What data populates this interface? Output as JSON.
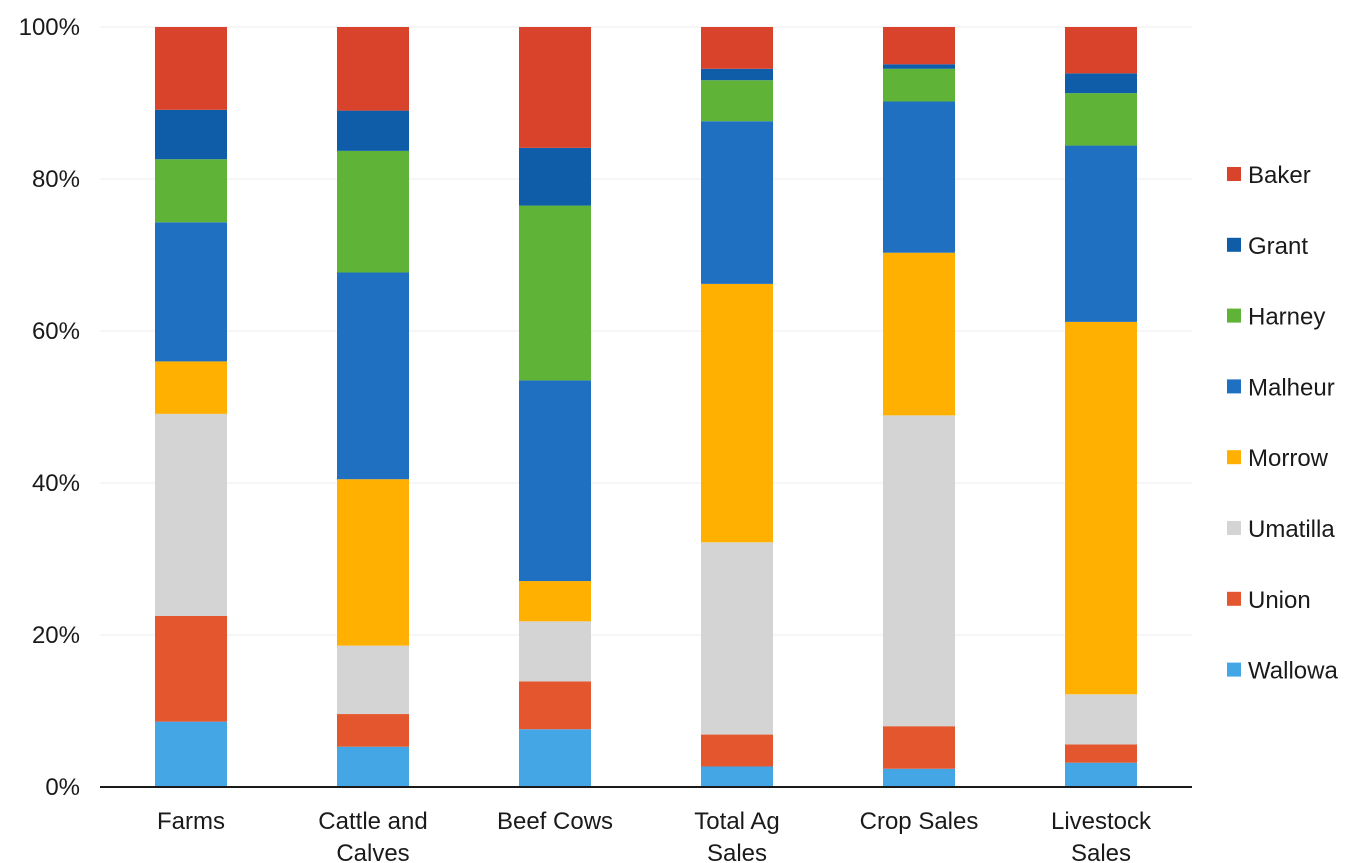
{
  "chart_data": {
    "type": "bar",
    "stacked": true,
    "percent": true,
    "categories": [
      [
        "Farms"
      ],
      [
        "Cattle and",
        "Calves"
      ],
      [
        "Beef Cows"
      ],
      [
        "Total Ag",
        "Sales"
      ],
      [
        "Crop Sales"
      ],
      [
        "Livestock",
        "Sales"
      ]
    ],
    "ylim": [
      0,
      100
    ],
    "yticks": [
      "0%",
      "20%",
      "40%",
      "60%",
      "80%",
      "100%"
    ],
    "ytick_values": [
      0,
      20,
      40,
      60,
      80,
      100
    ],
    "grid": true,
    "legend_position": "right",
    "series": [
      {
        "name": "Wallowa",
        "color": "#45a6e6",
        "values": [
          8.6,
          5.3,
          7.6,
          2.7,
          2.4,
          3.2
        ]
      },
      {
        "name": "Union",
        "color": "#e4572e",
        "values": [
          13.9,
          4.3,
          6.3,
          4.2,
          5.6,
          2.4
        ]
      },
      {
        "name": "Umatilla",
        "color": "#d4d4d4",
        "values": [
          26.6,
          9.0,
          7.9,
          25.3,
          40.9,
          6.6
        ]
      },
      {
        "name": "Morrow",
        "color": "#ffb000",
        "values": [
          6.9,
          21.9,
          5.3,
          34.0,
          21.4,
          49.0
        ]
      },
      {
        "name": "Malheur",
        "color": "#1f70c1",
        "values": [
          18.3,
          27.2,
          26.4,
          21.4,
          19.9,
          23.2
        ]
      },
      {
        "name": "Harney",
        "color": "#5fb337",
        "values": [
          8.3,
          16.0,
          23.0,
          5.4,
          4.3,
          6.9
        ]
      },
      {
        "name": "Grant",
        "color": "#0f5da8",
        "values": [
          6.5,
          5.3,
          7.6,
          1.5,
          0.6,
          2.6
        ]
      },
      {
        "name": "Baker",
        "color": "#d9432b",
        "values": [
          10.9,
          11.0,
          15.9,
          5.5,
          4.9,
          6.1
        ]
      }
    ],
    "legend_order": [
      "Baker",
      "Grant",
      "Harney",
      "Malheur",
      "Morrow",
      "Umatilla",
      "Union",
      "Wallowa"
    ]
  }
}
